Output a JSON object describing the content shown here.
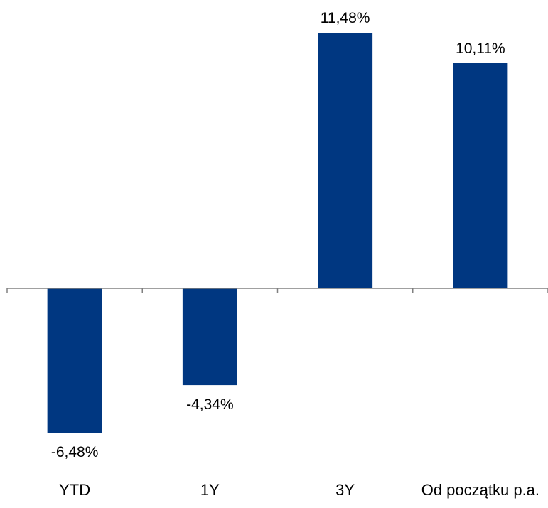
{
  "chart_data": {
    "type": "bar",
    "title": "",
    "xlabel": "",
    "ylabel": "",
    "categories": [
      "YTD",
      "1Y",
      "3Y",
      "Od początku p.a."
    ],
    "values": [
      -6.48,
      -4.34,
      11.48,
      10.11
    ],
    "value_labels": [
      "-6,48%",
      "-4,34%",
      "11,48%",
      "10,11%"
    ],
    "ylim": [
      -7.5,
      12.5
    ],
    "grid": false,
    "legend": "none",
    "bar_color": "#003781",
    "axis_color": "#808080"
  }
}
